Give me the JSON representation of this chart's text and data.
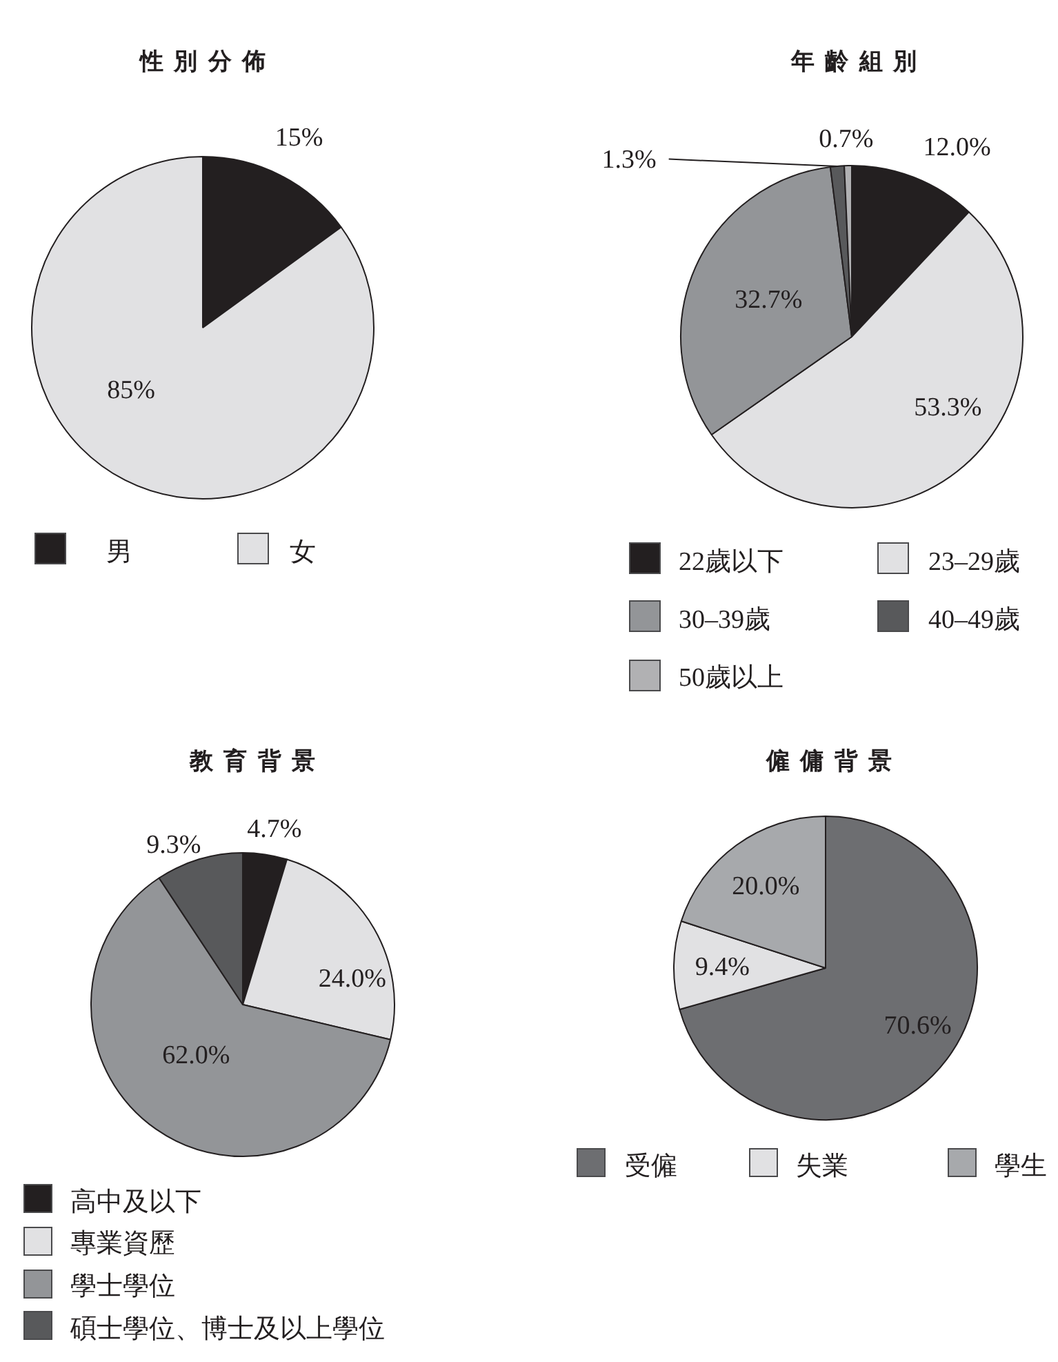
{
  "chart_data": [
    {
      "type": "pie",
      "title": "性別分佈",
      "categories": [
        "男",
        "女"
      ],
      "values": [
        15,
        85
      ],
      "colors": [
        "#231f20",
        "#e1e1e3"
      ],
      "value_labels": [
        "15%",
        "85%"
      ],
      "legend": "bottom"
    },
    {
      "type": "pie",
      "title": "年齡組別",
      "categories": [
        "22歲以下",
        "23–29歲",
        "30–39歲",
        "40–49歲",
        "50歲以上"
      ],
      "values": [
        12.0,
        53.3,
        32.7,
        1.3,
        0.7
      ],
      "colors": [
        "#231f20",
        "#e1e1e3",
        "#939598",
        "#58595b",
        "#b1b1b3"
      ],
      "value_labels": [
        "12.0%",
        "53.3%",
        "32.7%",
        "1.3%",
        "0.7%"
      ],
      "legend": "bottom"
    },
    {
      "type": "pie",
      "title": "教育背景",
      "categories": [
        "高中及以下",
        "專業資歷",
        "學士學位",
        "碩士學位、博士及以上學位"
      ],
      "values": [
        4.7,
        24.0,
        62.0,
        9.3
      ],
      "colors": [
        "#231f20",
        "#e1e1e3",
        "#939598",
        "#58595b"
      ],
      "value_labels": [
        "4.7%",
        "24.0%",
        "62.0%",
        "9.3%"
      ],
      "legend": "bottom"
    },
    {
      "type": "pie",
      "title": "僱傭背景",
      "categories": [
        "受僱",
        "失業",
        "學生"
      ],
      "values": [
        70.6,
        9.4,
        20.0
      ],
      "colors": [
        "#6d6e71",
        "#e1e1e3",
        "#a7a9ac"
      ],
      "value_labels": [
        "70.6%",
        "9.4%",
        "20.0%"
      ],
      "legend": "bottom"
    }
  ]
}
